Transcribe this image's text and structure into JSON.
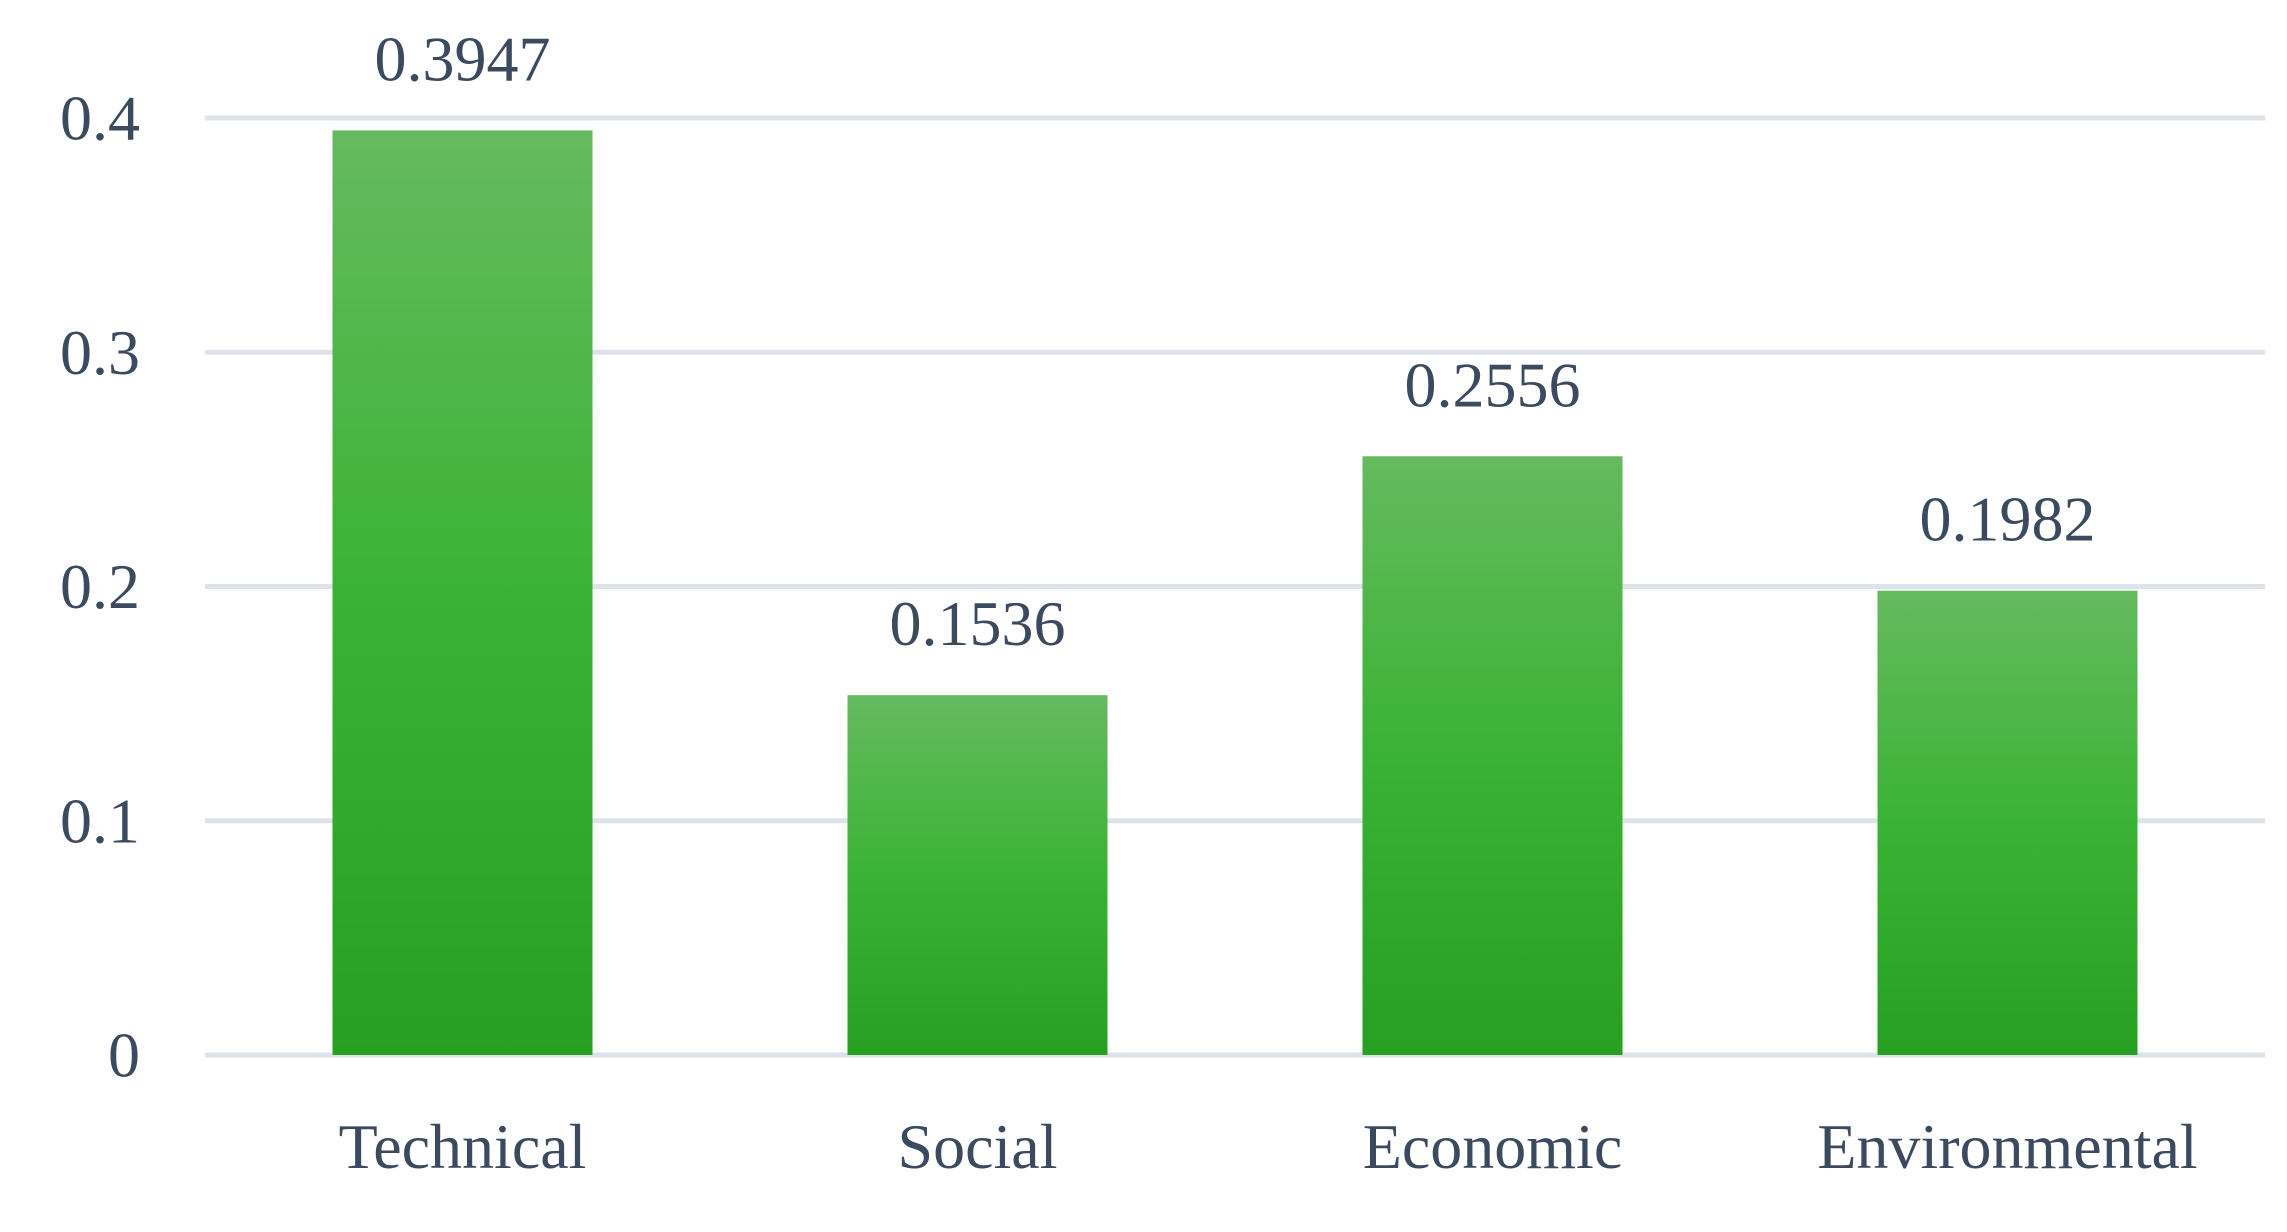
{
  "chart_data": {
    "type": "bar",
    "title": "",
    "xlabel": "",
    "ylabel": "",
    "categories": [
      "Technical",
      "Social",
      "Economic",
      "Environmental"
    ],
    "values": [
      0.3947,
      0.1536,
      0.2556,
      0.1982
    ],
    "data_labels": [
      "0.3947",
      "0.1536",
      "0.2556",
      "0.1982"
    ],
    "ylim": [
      0,
      0.4
    ],
    "yticks": [
      0,
      0.1,
      0.2,
      0.3,
      0.4
    ],
    "ytick_labels": [
      "0",
      "0.1",
      "0.2",
      "0.3",
      "0.4"
    ],
    "grid": true,
    "legend": "none",
    "colors": {
      "bar_top": "#65ba5e",
      "bar_mid": "#3ab334",
      "bar_bottom": "#27a022",
      "gridline": "#dde3ea",
      "text": "#3b4a5e"
    }
  }
}
